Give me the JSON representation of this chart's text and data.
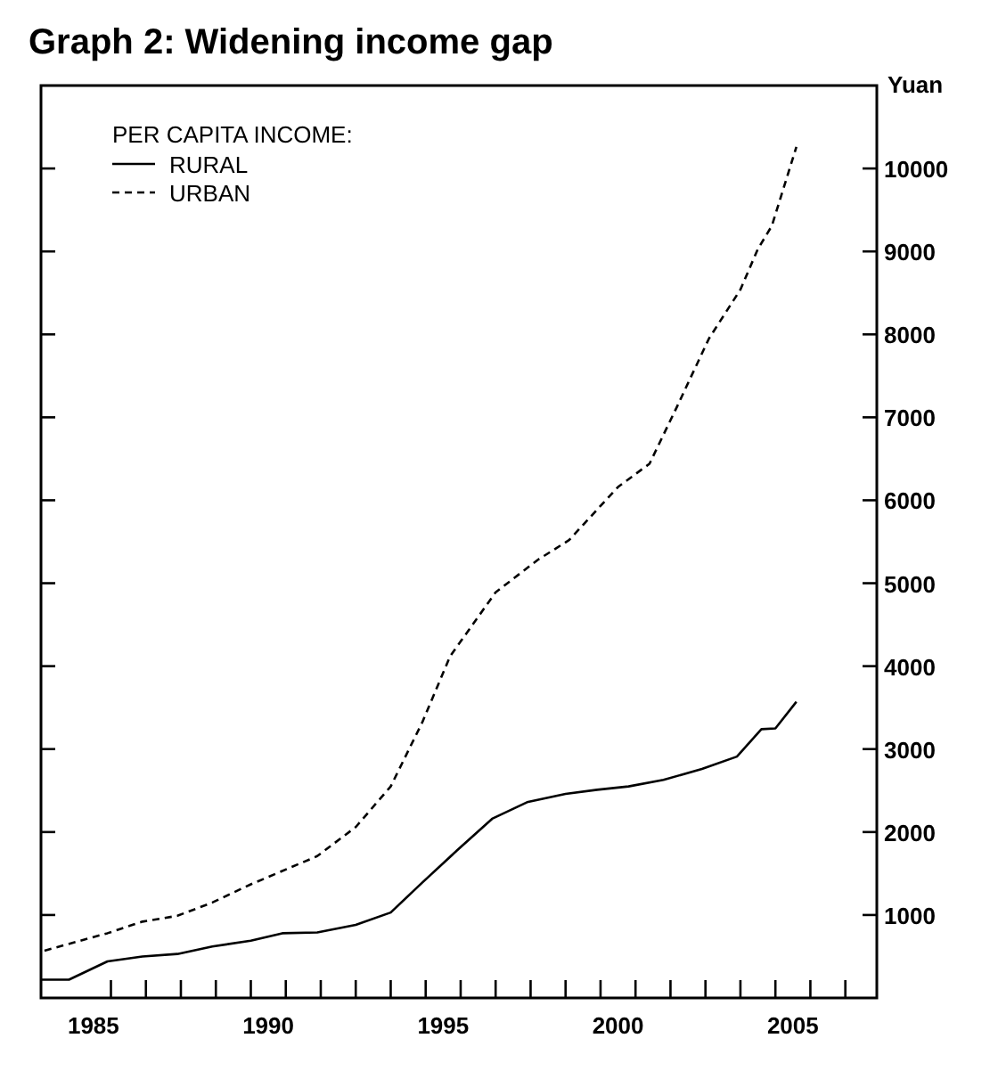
{
  "chart_data": {
    "type": "line",
    "title": "Graph 2: Widening income gap",
    "ylabel": "Yuan",
    "legend_title": "PER CAPITA INCOME:",
    "legend": "top left",
    "grid": false,
    "tick_labels": "xy",
    "xlim": [
      1983.5,
      2007.4
    ],
    "ylim": [
      0,
      11000
    ],
    "xticks": [
      {
        "value": 1985,
        "label": "1985"
      },
      {
        "value": 1990,
        "label": "1990"
      },
      {
        "value": 1995,
        "label": "1995"
      },
      {
        "value": 2000,
        "label": "2000"
      },
      {
        "value": 2005,
        "label": "2005"
      },
      {
        "value": 1985.5,
        "label": null
      },
      {
        "value": 1986.5,
        "label": null
      },
      {
        "value": 1987.5,
        "label": null
      },
      {
        "value": 1988.5,
        "label": null
      },
      {
        "value": 1989.5,
        "label": null
      },
      {
        "value": 1990.5,
        "label": null
      },
      {
        "value": 1991.5,
        "label": null
      },
      {
        "value": 1992.5,
        "label": null
      },
      {
        "value": 1993.5,
        "label": null
      },
      {
        "value": 1994.5,
        "label": null
      },
      {
        "value": 1995.5,
        "label": null
      },
      {
        "value": 1996.5,
        "label": null
      },
      {
        "value": 1997.5,
        "label": null
      },
      {
        "value": 1998.5,
        "label": null
      },
      {
        "value": 1999.5,
        "label": null
      },
      {
        "value": 2000.5,
        "label": null
      },
      {
        "value": 2001.5,
        "label": null
      },
      {
        "value": 2002.5,
        "label": null
      },
      {
        "value": 2003.5,
        "label": null
      },
      {
        "value": 2004.5,
        "label": null
      },
      {
        "value": 2005.5,
        "label": null
      },
      {
        "value": 2006.5,
        "label": null
      }
    ],
    "yticks": [
      1000,
      2000,
      3000,
      4000,
      5000,
      6000,
      7000,
      8000,
      9000,
      10000
    ],
    "series": [
      {
        "name": "RURAL",
        "color": "#000000",
        "line_style": "solid",
        "x": [
          1983.5,
          1984.3,
          1985.4,
          1986.4,
          1987.4,
          1988.4,
          1989.5,
          1990.4,
          1991.4,
          1992.5,
          1993.5,
          1994.4,
          1995.4,
          1996.4,
          1997.4,
          1998.5,
          1999.4,
          2000.3,
          2001.3,
          2002.4,
          2003.4,
          2004.1,
          2004.5,
          2005.1
        ],
        "values": [
          220,
          220,
          440,
          500,
          530,
          620,
          690,
          780,
          790,
          880,
          1030,
          1390,
          1780,
          2160,
          2360,
          2460,
          2510,
          2550,
          2630,
          2760,
          2910,
          3240,
          3250,
          3570
        ]
      },
      {
        "name": "URBAN",
        "color": "#000000",
        "line_style": "dashed",
        "x": [
          1983.6,
          1985.4,
          1986.4,
          1987.4,
          1988.4,
          1989.5,
          1990.4,
          1991.4,
          1992.5,
          1993.5,
          1994.4,
          1995.2,
          1996.5,
          1997.7,
          1998.6,
          2000.0,
          2000.9,
          2001.7,
          2002.6,
          2003.5,
          2004.0,
          2004.4,
          2005.1
        ],
        "values": [
          570,
          780,
          920,
          990,
          1150,
          1370,
          1530,
          1710,
          2060,
          2550,
          3320,
          4120,
          4890,
          5280,
          5520,
          6160,
          6440,
          7140,
          7950,
          8540,
          9030,
          9310,
          10260
        ]
      }
    ]
  }
}
